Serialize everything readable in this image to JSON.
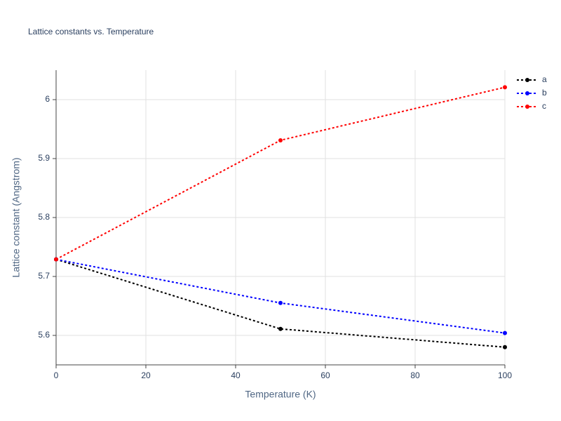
{
  "chart_data": {
    "type": "line",
    "title": "Lattice constants vs. Temperature",
    "x_label": "Temperature (K)",
    "y_label": "Lattice constant (Angstrom)",
    "x": [
      0,
      50,
      100
    ],
    "series": [
      {
        "name": "a",
        "color": "#000000",
        "values": [
          5.729,
          5.611,
          5.58
        ]
      },
      {
        "name": "b",
        "color": "#0000ff",
        "values": [
          5.729,
          5.655,
          5.604
        ]
      },
      {
        "name": "c",
        "color": "#ff0000",
        "values": [
          5.729,
          5.931,
          6.021
        ]
      }
    ],
    "xlim": [
      0,
      100
    ],
    "xticks": [
      0,
      20,
      40,
      60,
      80,
      100
    ],
    "ylim": [
      5.55,
      6.05
    ],
    "yticks": [
      5.6,
      5.7,
      5.8,
      5.9,
      6
    ],
    "grid": true,
    "legend": "right"
  }
}
